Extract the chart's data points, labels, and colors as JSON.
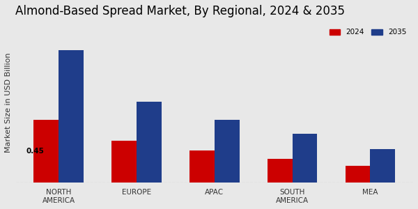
{
  "title": "Almond-Based Spread Market, By Regional, 2024 & 2035",
  "ylabel": "Market Size in USD Billion",
  "categories": [
    "NORTH\nAMERICA",
    "EUROPE",
    "APAC",
    "SOUTH\nAMERICA",
    "MEA"
  ],
  "values_2024": [
    0.45,
    0.3,
    0.23,
    0.17,
    0.12
  ],
  "values_2035": [
    0.95,
    0.58,
    0.45,
    0.35,
    0.24
  ],
  "color_2024": "#cc0000",
  "color_2035": "#1f3d8a",
  "background_color": "#e8e8e8",
  "bar_annotation": "0.45",
  "bar_annotation_index": 0,
  "legend_labels": [
    "2024",
    "2035"
  ],
  "title_fontsize": 12,
  "axis_label_fontsize": 8,
  "tick_fontsize": 7.5,
  "bar_width": 0.32,
  "ylim": [
    0,
    1.15
  ],
  "bottom_bar_color": "#cc0000",
  "logo_watermark": true
}
